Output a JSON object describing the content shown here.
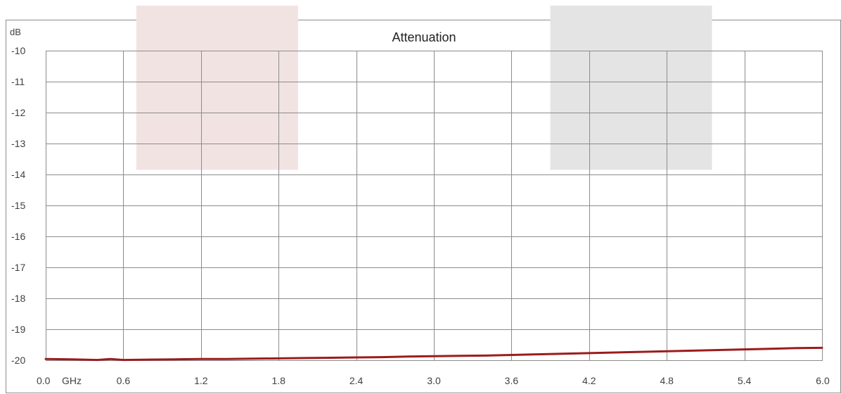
{
  "chart_data": {
    "type": "line",
    "title": "Attenuation",
    "ylabel": "dB",
    "xlabel": "GHz",
    "xlim": [
      0.0,
      6.0
    ],
    "ylim": [
      -20,
      -10
    ],
    "x_ticks": [
      "0.0",
      "0.6",
      "1.2",
      "1.8",
      "2.4",
      "3.0",
      "3.6",
      "4.2",
      "4.8",
      "5.4",
      "6.0"
    ],
    "y_ticks": [
      "-10",
      "-11",
      "-12",
      "-13",
      "-14",
      "-15",
      "-16",
      "-17",
      "-18",
      "-19",
      "-20"
    ],
    "grid": true,
    "bands": [
      {
        "x_start": 0.7,
        "x_end": 1.95,
        "y_top": -10,
        "y_bottom": -13.85,
        "color": "#f2e3e3"
      },
      {
        "x_start": 3.9,
        "x_end": 5.15,
        "y_top": -10,
        "y_bottom": -13.85,
        "color": "#e4e4e4"
      }
    ],
    "series": [
      {
        "color": "#9c1c1c",
        "x": [
          0.0,
          0.2,
          0.4,
          0.5,
          0.6,
          0.8,
          1.0,
          1.2,
          1.4,
          1.6,
          1.8,
          2.0,
          2.2,
          2.4,
          2.6,
          2.8,
          3.0,
          3.2,
          3.4,
          3.6,
          3.8,
          4.0,
          4.2,
          4.4,
          4.6,
          4.8,
          5.0,
          5.2,
          5.4,
          5.6,
          5.8,
          6.0
        ],
        "y": [
          -19.96,
          -19.97,
          -19.99,
          -19.96,
          -19.99,
          -19.98,
          -19.97,
          -19.96,
          -19.96,
          -19.95,
          -19.94,
          -19.93,
          -19.92,
          -19.91,
          -19.9,
          -19.88,
          -19.87,
          -19.86,
          -19.85,
          -19.83,
          -19.81,
          -19.79,
          -19.77,
          -19.75,
          -19.73,
          -19.71,
          -19.69,
          -19.67,
          -19.65,
          -19.63,
          -19.61,
          -19.6
        ]
      }
    ]
  }
}
